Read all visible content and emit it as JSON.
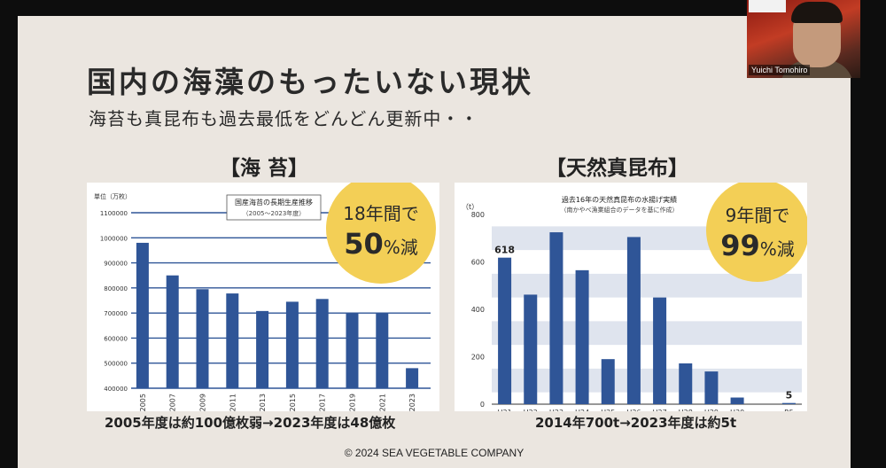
{
  "slide": {
    "title": "国内の海藻のもったいない現状",
    "subtitle": "海苔も真昆布も過去最低をどんどん更新中・・",
    "copyright": "© 2024 SEA VEGETABLE COMPANY"
  },
  "nori": {
    "heading": "【海 苔】",
    "caption": "2005年度は約100億枚弱→2023年度は48億枚",
    "badge_line1": "18年間で",
    "badge_big": "50",
    "badge_unit": "%減",
    "colors": {
      "bar": "#2f5597",
      "badge": "#f3cf56",
      "grid": "#2f5597"
    }
  },
  "kombu": {
    "heading": "【天然真昆布】",
    "caption": "2014年700t→2023年度は約5t",
    "badge_line1": "9年間で",
    "badge_big": "99",
    "badge_unit": "%減",
    "colors": {
      "bar": "#2f5597",
      "badge": "#f3cf56",
      "band": "#dfe4ee"
    }
  },
  "webcam": {
    "participant_name": "Yuichi Tomohiro"
  },
  "chart_data": [
    {
      "type": "bar",
      "title": "国産海苔の長期生産推移",
      "subtitle": "（2005〜2023年度）",
      "ylabel": "単位（万枚）",
      "categories": [
        "2005",
        "2007",
        "2009",
        "2011",
        "2013",
        "2015",
        "2017",
        "2019",
        "2021",
        "2023"
      ],
      "values": [
        980000,
        850000,
        795000,
        778000,
        708000,
        745000,
        756000,
        700000,
        700000,
        480000
      ],
      "ylim": [
        400000,
        1100000
      ],
      "yticks": [
        400000,
        500000,
        600000,
        700000,
        800000,
        900000,
        1000000,
        1100000
      ],
      "ytick_labels": [
        "400000",
        "500000",
        "600000",
        "700000",
        "800000",
        "900000",
        "1000000",
        "1100000"
      ],
      "grid": true
    },
    {
      "type": "bar",
      "title": "過去16年の天然真昆布の水揚げ実績",
      "subtitle": "（南かやべ漁業組合のデータを基に作成）",
      "ylabel": "（t）",
      "categories": [
        "H21",
        "H22",
        "H23",
        "H24",
        "H25",
        "H26",
        "H27",
        "H28",
        "H29",
        "H30",
        "・・・・・",
        "R5"
      ],
      "values": [
        618,
        462,
        725,
        565,
        190,
        705,
        450,
        172,
        138,
        28,
        null,
        5
      ],
      "data_labels": {
        "H21": "618",
        "R5": "5"
      },
      "ylim": [
        0,
        800
      ],
      "yticks": [
        0,
        200,
        400,
        600,
        800
      ],
      "ytick_labels": [
        "0",
        "200",
        "400",
        "600",
        "800"
      ],
      "grid": "bands"
    }
  ]
}
